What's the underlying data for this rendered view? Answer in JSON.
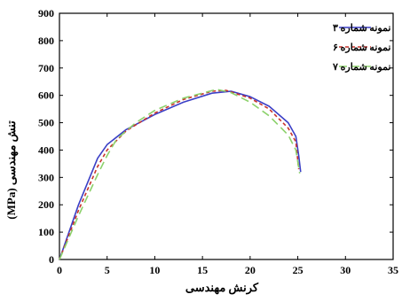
{
  "chart_data": {
    "type": "line",
    "title": "",
    "xlabel": "کرنش مهندسی",
    "ylabel": "تنش مهندسی (MPa)",
    "xlim": [
      0,
      35
    ],
    "ylim": [
      0,
      900
    ],
    "xticks": [
      "0",
      "5",
      "10",
      "15",
      "20",
      "25",
      "30",
      "35"
    ],
    "yticks": [
      "0",
      "100",
      "200",
      "300",
      "400",
      "500",
      "600",
      "700",
      "800",
      "900"
    ],
    "grid": false,
    "legend_position": "top-right",
    "series": [
      {
        "name": "نمونه شماره ۳",
        "color": "#3b3fc6",
        "dash": "solid",
        "x": [
          0,
          2,
          4,
          5,
          7,
          10,
          13,
          16,
          18,
          20,
          22,
          24,
          24.8,
          25.1,
          25.3
        ],
        "y": [
          0,
          200,
          370,
          420,
          475,
          530,
          575,
          608,
          615,
          595,
          560,
          500,
          450,
          380,
          320
        ]
      },
      {
        "name": "نمونه شماره ۶",
        "color": "#c8332c",
        "dash": "dashed",
        "x": [
          0,
          2,
          4,
          5,
          7,
          10,
          13,
          16,
          17.5,
          20,
          22,
          24,
          24.8,
          25.1
        ],
        "y": [
          0,
          180,
          340,
          400,
          470,
          535,
          585,
          615,
          618,
          590,
          550,
          480,
          430,
          330
        ]
      },
      {
        "name": "نمونه شماره ۷",
        "color": "#8cd16b",
        "dash": "dashed",
        "x": [
          0,
          2,
          4,
          5,
          6,
          8,
          10,
          13,
          16.5,
          18,
          20,
          22,
          24,
          24.8,
          25.2
        ],
        "y": [
          0,
          160,
          310,
          380,
          440,
          500,
          545,
          590,
          622,
          610,
          575,
          525,
          455,
          400,
          315
        ]
      }
    ]
  }
}
